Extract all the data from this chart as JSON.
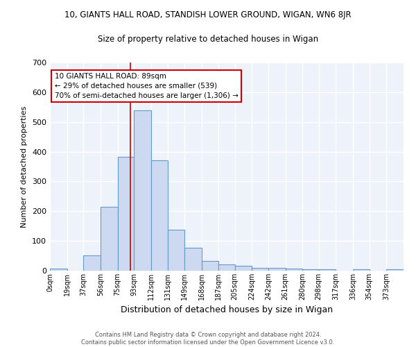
{
  "title_line1": "10, GIANTS HALL ROAD, STANDISH LOWER GROUND, WIGAN, WN6 8JR",
  "title_line2": "Size of property relative to detached houses in Wigan",
  "xlabel": "Distribution of detached houses by size in Wigan",
  "ylabel": "Number of detached properties",
  "bin_labels": [
    "0sqm",
    "19sqm",
    "37sqm",
    "56sqm",
    "75sqm",
    "93sqm",
    "112sqm",
    "131sqm",
    "149sqm",
    "168sqm",
    "187sqm",
    "205sqm",
    "224sqm",
    "242sqm",
    "261sqm",
    "280sqm",
    "298sqm",
    "317sqm",
    "336sqm",
    "354sqm",
    "373sqm"
  ],
  "bin_edges": [
    0,
    19,
    37,
    56,
    75,
    93,
    112,
    131,
    149,
    168,
    187,
    205,
    224,
    242,
    261,
    280,
    298,
    317,
    336,
    354,
    373,
    392
  ],
  "bar_heights": [
    7,
    0,
    52,
    215,
    382,
    540,
    370,
    138,
    78,
    32,
    22,
    17,
    10,
    10,
    8,
    5,
    5,
    0,
    5,
    0,
    5
  ],
  "bar_facecolor": "#ccd9f0",
  "bar_edgecolor": "#6699cc",
  "background_color": "#eef2fb",
  "grid_color": "#ffffff",
  "red_line_x": 89,
  "annotation_text": "10 GIANTS HALL ROAD: 89sqm\n← 29% of detached houses are smaller (539)\n70% of semi-detached houses are larger (1,306) →",
  "annotation_box_edgecolor": "#cc0000",
  "annotation_box_facecolor": "#ffffff",
  "footer_line1": "Contains HM Land Registry data © Crown copyright and database right 2024.",
  "footer_line2": "Contains public sector information licensed under the Open Government Licence v3.0.",
  "ylim": [
    0,
    700
  ],
  "yticks": [
    0,
    100,
    200,
    300,
    400,
    500,
    600,
    700
  ]
}
